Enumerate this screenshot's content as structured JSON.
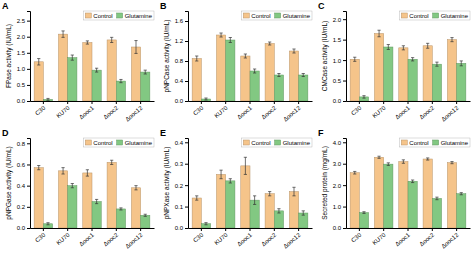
{
  "chart_data": [
    {
      "type": "bar",
      "title": "A",
      "y_label": "FPase activity (IU/mL)",
      "categories": [
        "C30",
        "KU70",
        "Δooc1",
        "Δooc2",
        "Δooc12"
      ],
      "series": [
        {
          "name": "Control",
          "color": "#F5C48A",
          "values": [
            1.22,
            2.08,
            1.82,
            1.9,
            1.68
          ],
          "errors": [
            0.1,
            0.1,
            0.05,
            0.08,
            0.2
          ]
        },
        {
          "name": "Glutamine",
          "color": "#82C882",
          "values": [
            0.05,
            1.35,
            0.96,
            0.62,
            0.9
          ],
          "errors": [
            0.03,
            0.08,
            0.06,
            0.05,
            0.06
          ]
        }
      ],
      "ylim": [
        0,
        2.8
      ],
      "yticks": [
        {
          "value": 0.0,
          "label": "0.0"
        },
        0.5,
        {
          "value": 1.0,
          "label": "1.0"
        },
        1.5,
        {
          "value": 2.0,
          "label": "2.0"
        },
        2.5
      ],
      "grid": false,
      "legend": "upper right"
    },
    {
      "type": "bar",
      "title": "B",
      "y_label": "pNPCase activity (IU/mL)",
      "categories": [
        "C30",
        "KU70",
        "Δooc1",
        "Δooc2",
        "Δooc12"
      ],
      "series": [
        {
          "name": "Control",
          "color": "#F5C48A",
          "values": [
            0.85,
            1.32,
            0.9,
            1.15,
            1.0
          ],
          "errors": [
            0.05,
            0.04,
            0.04,
            0.03,
            0.04
          ]
        },
        {
          "name": "Glutamine",
          "color": "#82C882",
          "values": [
            0.04,
            1.22,
            0.6,
            0.52,
            0.52
          ],
          "errors": [
            0.02,
            0.05,
            0.04,
            0.03,
            0.03
          ]
        }
      ],
      "ylim": [
        0,
        1.8
      ],
      "yticks": [
        {
          "value": 0.0,
          "label": "0.0"
        },
        0.4,
        0.8,
        1.2,
        1.6
      ],
      "grid": false,
      "legend": "upper right"
    },
    {
      "type": "bar",
      "title": "C",
      "y_label": "CMCase activity (IU/mL)",
      "categories": [
        "C30",
        "KU70",
        "Δooc1",
        "Δooc2",
        "Δooc12"
      ],
      "series": [
        {
          "name": "Control",
          "color": "#F5C48A",
          "values": [
            1.02,
            1.65,
            1.3,
            1.35,
            1.5
          ],
          "errors": [
            0.05,
            0.08,
            0.05,
            0.06,
            0.05
          ]
        },
        {
          "name": "Glutamine",
          "color": "#82C882",
          "values": [
            0.1,
            1.32,
            1.02,
            0.9,
            0.92
          ],
          "errors": [
            0.03,
            0.06,
            0.04,
            0.05,
            0.06
          ]
        }
      ],
      "ylim": [
        0,
        2.2
      ],
      "yticks": [
        {
          "value": 0.0,
          "label": "0.0"
        },
        0.5,
        {
          "value": 1.0,
          "label": "1.0"
        },
        1.5,
        {
          "value": 2.0,
          "label": "2.0"
        }
      ],
      "grid": false,
      "legend": "upper right"
    },
    {
      "type": "bar",
      "title": "D",
      "y_label": "pNPGase activity (IU/mL)",
      "categories": [
        "C30",
        "KU70",
        "Δooc1",
        "Δooc2",
        "Δooc12"
      ],
      "series": [
        {
          "name": "Control",
          "color": "#F5C48A",
          "values": [
            0.57,
            0.54,
            0.52,
            0.62,
            0.38
          ],
          "errors": [
            0.02,
            0.03,
            0.03,
            0.02,
            0.02
          ]
        },
        {
          "name": "Glutamine",
          "color": "#82C882",
          "values": [
            0.04,
            0.4,
            0.25,
            0.18,
            0.12
          ],
          "errors": [
            0.01,
            0.02,
            0.02,
            0.01,
            0.01
          ]
        }
      ],
      "ylim": [
        0,
        0.85
      ],
      "yticks": [
        {
          "value": 0.0,
          "label": "0.0"
        },
        0.2,
        0.4,
        0.6,
        0.8
      ],
      "grid": false,
      "legend": "upper right"
    },
    {
      "type": "bar",
      "title": "E",
      "y_label": "pNPXase activity (IU/mL)",
      "categories": [
        "C30",
        "KU70",
        "Δooc1",
        "Δooc2",
        "Δooc12"
      ],
      "series": [
        {
          "name": "Control",
          "color": "#F5C48A",
          "values": [
            0.14,
            0.25,
            0.29,
            0.16,
            0.17
          ],
          "errors": [
            0.01,
            0.02,
            0.04,
            0.01,
            0.02
          ]
        },
        {
          "name": "Glutamine",
          "color": "#82C882",
          "values": [
            0.02,
            0.22,
            0.13,
            0.08,
            0.07
          ],
          "errors": [
            0.005,
            0.01,
            0.02,
            0.01,
            0.01
          ]
        }
      ],
      "ylim": [
        0,
        0.42
      ],
      "yticks": [
        {
          "value": 0.0,
          "label": "0.0"
        },
        0.1,
        0.2,
        0.3,
        0.4
      ],
      "grid": false,
      "legend": "upper right"
    },
    {
      "type": "bar",
      "title": "F",
      "y_label": "Secreted protein (mg/mL)",
      "categories": [
        "C30",
        "KU70",
        "Δooc1",
        "Δooc2",
        "Δooc12"
      ],
      "series": [
        {
          "name": "Control",
          "color": "#F5C48A",
          "values": [
            2.58,
            3.3,
            3.1,
            3.22,
            3.05
          ],
          "errors": [
            0.06,
            0.05,
            0.08,
            0.05,
            0.05
          ]
        },
        {
          "name": "Glutamine",
          "color": "#82C882",
          "values": [
            0.72,
            2.98,
            2.18,
            1.38,
            1.6
          ],
          "errors": [
            0.04,
            0.06,
            0.06,
            0.06,
            0.05
          ]
        }
      ],
      "ylim": [
        0,
        4.2
      ],
      "yticks": [
        {
          "value": 0.0,
          "label": "0.0"
        },
        {
          "value": 1.0,
          "label": "1.0"
        },
        {
          "value": 2.0,
          "label": "2.0"
        },
        {
          "value": 3.0,
          "label": "3.0"
        },
        {
          "value": 4.0,
          "label": "4.0"
        }
      ],
      "grid": false,
      "legend": "upper right"
    }
  ]
}
